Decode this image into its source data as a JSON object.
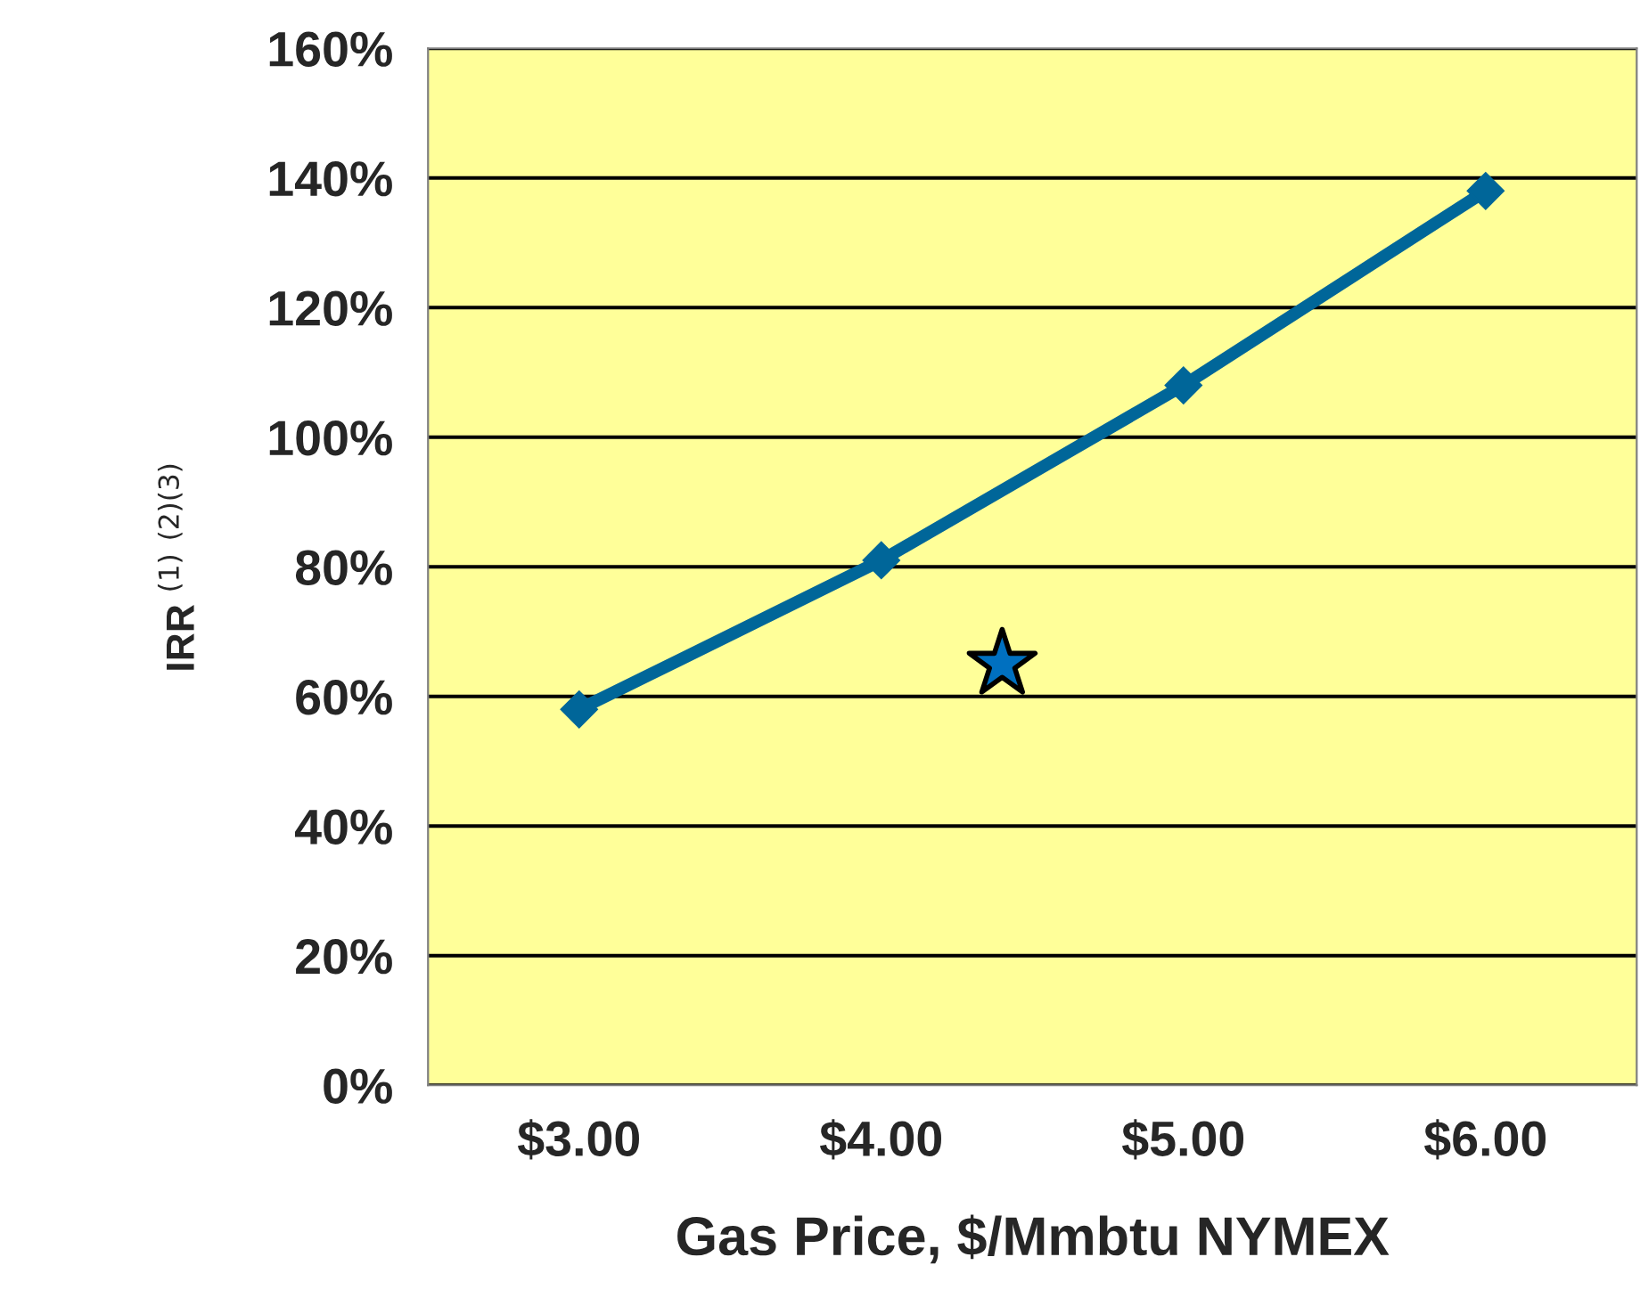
{
  "chart_data": {
    "type": "line",
    "xlabel": "Gas Price, $/Mmbtu NYMEX",
    "ylabel": "IRR $^{(1)}$ $^{(2)(3)}$",
    "x": [
      3,
      4,
      5,
      6
    ],
    "series": [
      {
        "color": "#006699",
        "marker": "diamond",
        "values": [
          58,
          81,
          108,
          138
        ]
      },
      {
        "type": "scatter",
        "color": "#0070c0",
        "marker": "star",
        "x": [
          4.4
        ],
        "values": [
          65
        ]
      }
    ],
    "xlim": [
      2.5,
      6.5
    ],
    "xticks": [
      {
        "value": 3,
        "label": "$3.00"
      },
      {
        "value": 4,
        "label": "$4.00"
      },
      {
        "value": 5,
        "label": "$5.00"
      },
      {
        "value": 6,
        "label": "$6.00"
      }
    ],
    "ylim": [
      0,
      160
    ],
    "yticks": [
      {
        "value": 0,
        "label": "0%"
      },
      {
        "value": 20,
        "label": "20%"
      },
      {
        "value": 40,
        "label": "40%"
      },
      {
        "value": 60,
        "label": "60%"
      },
      {
        "value": 80,
        "label": "80%"
      },
      {
        "value": 100,
        "label": "100%"
      },
      {
        "value": 120,
        "label": "120%"
      },
      {
        "value": 140,
        "label": "140%"
      },
      {
        "value": 160,
        "label": "160%"
      }
    ],
    "grid": "y"
  }
}
